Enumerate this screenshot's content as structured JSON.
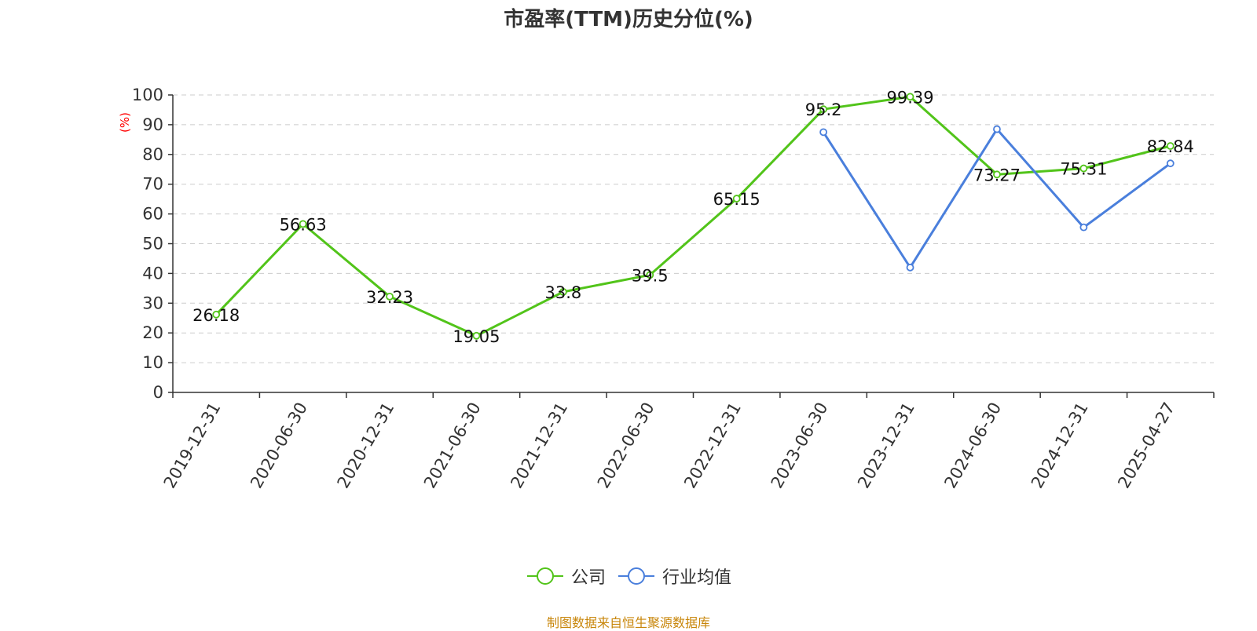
{
  "chart_data": {
    "type": "line",
    "title": "市盈率(TTM)历史分位(%)",
    "xlabel": "",
    "ylabel": "(%)",
    "ylim": [
      0,
      100
    ],
    "yticks": [
      0,
      10,
      20,
      30,
      40,
      50,
      60,
      70,
      80,
      90,
      100
    ],
    "grid": true,
    "legend_position": "bottom-center",
    "categories": [
      "2019-12-31",
      "2020-06-30",
      "2020-12-31",
      "2021-06-30",
      "2021-12-31",
      "2022-06-30",
      "2022-12-31",
      "2023-06-30",
      "2023-12-31",
      "2024-06-30",
      "2024-12-31",
      "2025-04-27"
    ],
    "series": [
      {
        "name": "公司",
        "color": "#52c41a",
        "show_labels": true,
        "values": [
          26.18,
          56.63,
          32.23,
          19.05,
          33.8,
          39.5,
          65.15,
          95.2,
          99.39,
          73.27,
          75.31,
          82.84
        ]
      },
      {
        "name": "行业均值",
        "color": "#4a7fdc",
        "show_labels": false,
        "values": [
          null,
          null,
          null,
          null,
          null,
          null,
          null,
          87.5,
          42.0,
          88.5,
          55.5,
          77.0
        ]
      }
    ]
  },
  "source_text": "制图数据来自恒生聚源数据库",
  "colors": {
    "title": "#333333",
    "axis": "#333333",
    "grid": "#cccccc",
    "ylabel": "#ff0000",
    "source": "#c8860a"
  }
}
